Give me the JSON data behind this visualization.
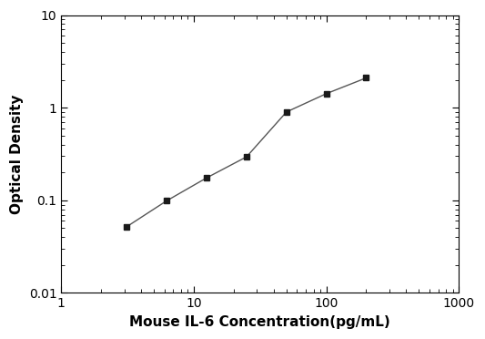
{
  "x_data": [
    3.125,
    6.25,
    12.5,
    25,
    50,
    100,
    200
  ],
  "y_data": [
    0.052,
    0.099,
    0.175,
    0.295,
    0.9,
    1.42,
    2.1
  ],
  "xlim": [
    1,
    1000
  ],
  "ylim": [
    0.01,
    10
  ],
  "xlabel": "Mouse IL-6 Concentration(pg/mL)",
  "ylabel": "Optical Density",
  "xlabel_fontsize": 11,
  "ylabel_fontsize": 11,
  "xlabel_fontweight": "bold",
  "ylabel_fontweight": "bold",
  "marker": "s",
  "marker_color": "#1a1a1a",
  "marker_size": 5,
  "line_color": "#555555",
  "line_width": 1.0,
  "background_color": "#ffffff",
  "tick_label_fontsize": 10,
  "ytick_labels": [
    "0.01",
    "0.1",
    "1",
    "10"
  ],
  "ytick_values": [
    0.01,
    0.1,
    1,
    10
  ],
  "xtick_labels": [
    "1",
    "10",
    "100",
    "1000"
  ],
  "xtick_values": [
    1,
    10,
    100,
    1000
  ]
}
